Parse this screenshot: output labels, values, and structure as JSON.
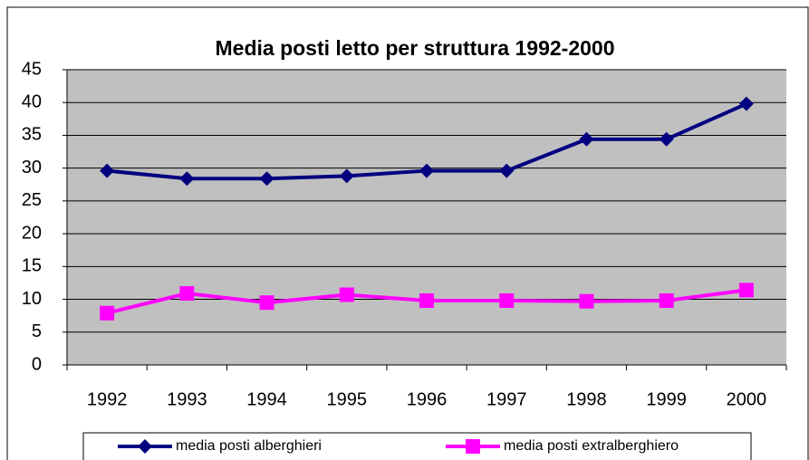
{
  "chart_data": {
    "type": "line",
    "title": "Media posti letto per struttura 1992-2000",
    "categories": [
      "1992",
      "1993",
      "1994",
      "1995",
      "1996",
      "1997",
      "1998",
      "1999",
      "2000"
    ],
    "series": [
      {
        "name": "media posti alberghieri",
        "color": "#000080",
        "marker": "diamond",
        "values": [
          29.6,
          28.4,
          28.4,
          28.8,
          29.6,
          29.6,
          34.4,
          34.4,
          39.8
        ]
      },
      {
        "name": "media posti extralberghiero",
        "color": "#ff00ff",
        "marker": "square",
        "values": [
          7.9,
          10.9,
          9.5,
          10.7,
          9.8,
          9.8,
          9.7,
          9.8,
          11.4
        ]
      }
    ],
    "ylim": [
      0,
      45
    ],
    "yticks": [
      0,
      5,
      10,
      15,
      20,
      25,
      30,
      35,
      40,
      45
    ],
    "grid": true,
    "legend": "bottom"
  }
}
